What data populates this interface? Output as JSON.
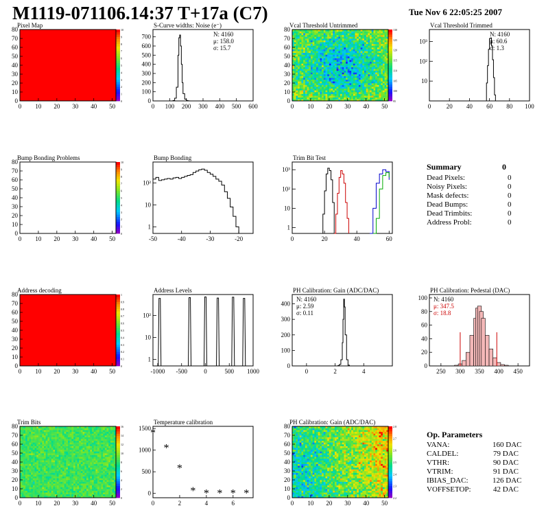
{
  "header": {
    "title": "M1119-071106.14:37 T+17a (C7)",
    "date": "Tue Nov  6 22:05:25 2007"
  },
  "chart_data": [
    {
      "id": "pixel-map",
      "type": "heatmap",
      "title": "Pixel Map",
      "xticks": [
        "0",
        "10",
        "20",
        "30",
        "40",
        "50"
      ],
      "yticks": [
        "0",
        "10",
        "20",
        "30",
        "40",
        "50",
        "60",
        "70",
        "80"
      ],
      "xlim": [
        0,
        52
      ],
      "ylim": [
        0,
        80
      ],
      "fill": "uniform",
      "color": "#ff0000",
      "zticks": [
        "0",
        "1",
        "2",
        "3",
        "4",
        "5",
        "6",
        "7",
        "8",
        "9",
        "10"
      ]
    },
    {
      "id": "scurve",
      "type": "line",
      "title": "S-Curve widths: Noise (e⁻)",
      "xticks": [
        "0",
        "100",
        "200",
        "300",
        "400",
        "500",
        "600"
      ],
      "yticks": [
        "0",
        "100",
        "200",
        "300",
        "400",
        "500",
        "600",
        "700"
      ],
      "xlim": [
        0,
        600
      ],
      "ylim": [
        0,
        780
      ],
      "stats": [
        "N: 4160",
        "μ: 158.0",
        "σ: 15.7"
      ],
      "series": [
        {
          "x": [
            110,
            120,
            130,
            140,
            150,
            155,
            160,
            165,
            170,
            175,
            180,
            190,
            200,
            210,
            220
          ],
          "values": [
            0,
            5,
            30,
            150,
            500,
            690,
            720,
            600,
            400,
            200,
            80,
            20,
            5,
            1,
            0
          ]
        }
      ]
    },
    {
      "id": "vcal-untrimmed",
      "type": "heatmap",
      "title": "Vcal Threshold Untrimmed",
      "xticks": [
        "0",
        "10",
        "20",
        "30",
        "40",
        "50"
      ],
      "yticks": [
        "0",
        "10",
        "20",
        "30",
        "40",
        "50",
        "60",
        "70",
        "80"
      ],
      "xlim": [
        0,
        52
      ],
      "ylim": [
        0,
        80
      ],
      "fill": "noise",
      "mean": 115,
      "spread": 6,
      "zmin": 95,
      "zmax": 130,
      "zticks": [
        "95",
        "100",
        "105",
        "110",
        "115",
        "120",
        "125",
        "130"
      ]
    },
    {
      "id": "vcal-trimmed",
      "type": "line",
      "title": "Vcal Threshold Trimmed",
      "log": true,
      "xticks": [
        "0",
        "20",
        "40",
        "60",
        "80",
        "100"
      ],
      "ytickvals": [
        10,
        100,
        1000
      ],
      "yticks": [
        "10",
        "10²",
        "10³"
      ],
      "xlim": [
        0,
        100
      ],
      "ylim": [
        1,
        4000
      ],
      "stats": [
        "N: 4160",
        "μ: 60.6",
        "σ:  1.3"
      ],
      "series": [
        {
          "x": [
            56,
            57,
            58,
            59,
            60,
            61,
            62,
            63,
            64,
            65,
            66
          ],
          "values": [
            1,
            8,
            60,
            400,
            1400,
            1500,
            600,
            120,
            15,
            2,
            1
          ]
        }
      ]
    },
    {
      "id": "bump-problems",
      "type": "heatmap",
      "title": "Bump Bonding Problems",
      "xticks": [
        "0",
        "10",
        "20",
        "30",
        "40",
        "50"
      ],
      "yticks": [
        "0",
        "10",
        "20",
        "30",
        "40",
        "50",
        "60",
        "70",
        "80"
      ],
      "xlim": [
        0,
        52
      ],
      "ylim": [
        0,
        80
      ],
      "fill": "none",
      "zticks": [
        "0",
        "1",
        "2",
        "3",
        "4",
        "5",
        "6",
        "7",
        "8",
        "9",
        "10"
      ]
    },
    {
      "id": "bump-bonding",
      "type": "line",
      "title": "Bump Bonding",
      "log": true,
      "xticks": [
        "-50",
        "-40",
        "-30",
        "-20"
      ],
      "ytickvals": [
        1,
        10,
        100
      ],
      "yticks": [
        "1",
        "10",
        "10²"
      ],
      "xlim": [
        -50,
        -15
      ],
      "ylim": [
        0.5,
        900
      ],
      "series": [
        {
          "x": [
            -50,
            -49,
            -48,
            -47,
            -46,
            -45,
            -44,
            -43,
            -42,
            -41,
            -40,
            -39,
            -38,
            -37,
            -36,
            -35,
            -34,
            -33,
            -32,
            -31,
            -30,
            -29,
            -28,
            -27,
            -26,
            -25,
            -24,
            -23,
            -22,
            -21,
            -20
          ],
          "values": [
            150,
            180,
            130,
            140,
            150,
            160,
            150,
            170,
            180,
            160,
            180,
            200,
            220,
            240,
            300,
            350,
            400,
            430,
            380,
            300,
            250,
            200,
            150,
            120,
            80,
            40,
            20,
            8,
            3,
            1,
            0.5
          ]
        }
      ]
    },
    {
      "id": "trim-bit-test",
      "type": "line",
      "title": "Trim Bit Test",
      "log": true,
      "xticks": [
        "0",
        "20",
        "40",
        "60"
      ],
      "ytickvals": [
        1,
        10,
        100,
        1000
      ],
      "yticks": [
        "1",
        "10",
        "10²",
        "10³"
      ],
      "xlim": [
        0,
        62
      ],
      "ylim": [
        0.5,
        2500
      ],
      "series": [
        {
          "color": "#000000",
          "x": [
            18,
            19,
            20,
            21,
            22,
            23,
            24,
            25,
            26
          ],
          "values": [
            0.5,
            5,
            80,
            600,
            1200,
            900,
            300,
            20,
            0.5
          ]
        },
        {
          "color": "#cc0000",
          "x": [
            26,
            27,
            28,
            29,
            30,
            31,
            32,
            33,
            34,
            35
          ],
          "values": [
            0.5,
            5,
            60,
            400,
            900,
            600,
            200,
            20,
            3,
            0.5
          ]
        },
        {
          "color": "#0000cc",
          "x": [
            48,
            50,
            52,
            54,
            56,
            58,
            60
          ],
          "values": [
            0.5,
            10,
            200,
            600,
            1000,
            800,
            300
          ]
        },
        {
          "color": "#00aa00",
          "x": [
            50,
            52,
            54,
            56,
            58,
            60
          ],
          "values": [
            0.5,
            3,
            100,
            500,
            700,
            400
          ]
        }
      ]
    },
    {
      "id": "address-decoding",
      "type": "heatmap",
      "title": "Address decoding",
      "xticks": [
        "0",
        "10",
        "20",
        "30",
        "40",
        "50"
      ],
      "yticks": [
        "0",
        "10",
        "20",
        "30",
        "40",
        "50",
        "60",
        "70",
        "80"
      ],
      "xlim": [
        0,
        52
      ],
      "ylim": [
        0,
        80
      ],
      "fill": "uniform",
      "color": "#ff0000",
      "zticks": [
        "0",
        "0.1",
        "0.2",
        "0.3",
        "0.4",
        "0.5",
        "0.6",
        "0.7",
        "0.8",
        "0.9",
        "1"
      ]
    },
    {
      "id": "address-levels",
      "type": "line",
      "title": "Address Levels",
      "log": true,
      "xticks": [
        "-1000",
        "-500",
        "0",
        "500",
        "1000"
      ],
      "ytickvals": [
        1,
        10,
        100
      ],
      "yticks": [
        "1",
        "10",
        "10²"
      ],
      "xlim": [
        -1100,
        1000
      ],
      "ylim": [
        0.5,
        900
      ],
      "series": [
        {
          "x": [
            -960,
            -330,
            0,
            260,
            580,
            810
          ],
          "values": [
            600,
            650,
            700,
            620,
            680,
            600
          ]
        }
      ]
    },
    {
      "id": "ph-gain",
      "type": "line",
      "title": "PH Calibration: Gain (ADC/DAC)",
      "xticks": [
        "0",
        "2",
        "4"
      ],
      "yticks": [
        "0",
        "100",
        "200",
        "300",
        "400"
      ],
      "xlim": [
        -1,
        6
      ],
      "ylim": [
        0,
        460
      ],
      "stats": [
        "N: 4160",
        "μ: 2.59",
        "σ: 0.11"
      ],
      "series": [
        {
          "x": [
            2.1,
            2.2,
            2.3,
            2.4,
            2.5,
            2.55,
            2.6,
            2.65,
            2.7,
            2.8,
            2.9,
            3.0
          ],
          "values": [
            0,
            3,
            10,
            40,
            150,
            300,
            430,
            380,
            200,
            40,
            5,
            0
          ]
        }
      ]
    },
    {
      "id": "ph-pedestal",
      "type": "line",
      "title": "PH Calibration: Pedestal (DAC)",
      "xticks": [
        "250",
        "300",
        "350",
        "400",
        "450"
      ],
      "yticks": [
        "0",
        "20",
        "40",
        "60",
        "80",
        "100"
      ],
      "xlim": [
        220,
        480
      ],
      "ylim": [
        0,
        105
      ],
      "stats": [
        "N: 4160",
        "μ: 347.5",
        "σ: 18.8"
      ],
      "statColors": [
        "#000000",
        "#cc0000",
        "#cc0000"
      ],
      "series": [
        {
          "x": [
            290,
            300,
            310,
            320,
            330,
            340,
            345,
            350,
            355,
            360,
            370,
            380,
            390,
            400,
            410,
            420,
            430
          ],
          "values": [
            1,
            3,
            8,
            20,
            45,
            70,
            85,
            88,
            80,
            70,
            45,
            25,
            12,
            5,
            2,
            1,
            0
          ]
        }
      ],
      "markers": [
        300,
        395
      ]
    },
    {
      "id": "trim-bits",
      "type": "heatmap",
      "title": "Trim Bits",
      "xticks": [
        "0",
        "10",
        "20",
        "30",
        "40",
        "50"
      ],
      "yticks": [
        "0",
        "10",
        "20",
        "30",
        "40",
        "50",
        "60",
        "70",
        "80"
      ],
      "xlim": [
        0,
        52
      ],
      "ylim": [
        0,
        80
      ],
      "fill": "noise",
      "mean": 8.5,
      "spread": 1.2,
      "zmin": 0,
      "zmax": 16,
      "zticks": [
        "0",
        "2",
        "4",
        "6",
        "8",
        "10",
        "12",
        "14",
        "16"
      ]
    },
    {
      "id": "temp-calibration",
      "type": "scatter",
      "title": "Temperature calibration",
      "xticks": [
        "0",
        "2",
        "4",
        "6"
      ],
      "yticks": [
        "0",
        "500",
        "1000",
        "1500"
      ],
      "xlim": [
        0,
        7.5
      ],
      "ylim": [
        -100,
        1550
      ],
      "series": [
        {
          "x": [
            0,
            1,
            2,
            3,
            4,
            5,
            6,
            7
          ],
          "values": [
            1400,
            1050,
            580,
            60,
            0,
            0,
            0,
            0
          ]
        }
      ]
    },
    {
      "id": "ph-gain-map",
      "type": "heatmap",
      "title": "PH Calibration: Gain (ADC/DAC)",
      "xticks": [
        "0",
        "10",
        "20",
        "30",
        "40",
        "50"
      ],
      "yticks": [
        "0",
        "10",
        "20",
        "30",
        "40",
        "50",
        "60",
        "70",
        "80"
      ],
      "xlim": [
        0,
        52
      ],
      "ylim": [
        0,
        80
      ],
      "fill": "gradient",
      "mean": 2.6,
      "spread": 0.12,
      "zmin": 2.2,
      "zmax": 2.9,
      "zticks": [
        "2.2",
        "2.3",
        "2.4",
        "2.5",
        "2.6",
        "2.7",
        "2.8"
      ]
    }
  ],
  "summary": {
    "title": "Summary",
    "total": "0",
    "rows": [
      {
        "label": "Dead Pixels:",
        "value": "0"
      },
      {
        "label": "Noisy Pixels:",
        "value": "0"
      },
      {
        "label": "Mask defects:",
        "value": "0"
      },
      {
        "label": "Dead Bumps:",
        "value": "0"
      },
      {
        "label": "Dead Trimbits:",
        "value": "0"
      },
      {
        "label": "Address Probl:",
        "value": "0"
      }
    ]
  },
  "op_params": {
    "title": "Op. Parameters",
    "rows": [
      {
        "label": "VANA:",
        "value": "160 DAC"
      },
      {
        "label": "CALDEL:",
        "value": "79 DAC"
      },
      {
        "label": "VTHR:",
        "value": "90 DAC"
      },
      {
        "label": "VTRIM:",
        "value": "91 DAC"
      },
      {
        "label": "IBIAS_DAC:",
        "value": "126 DAC"
      },
      {
        "label": "VOFFSETOP:",
        "value": "42 DAC"
      }
    ]
  }
}
